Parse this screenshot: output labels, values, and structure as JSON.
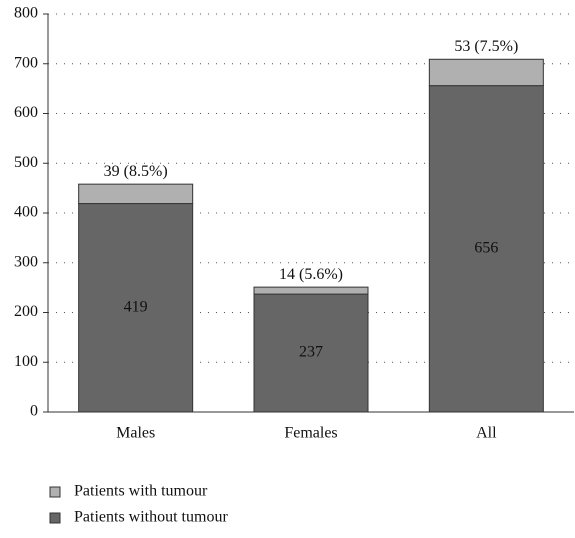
{
  "chart_data": {
    "type": "stacked_bar",
    "categories": [
      "Males",
      "Females",
      "All"
    ],
    "series": [
      {
        "name": "Patients with tumour",
        "color": "#b0b0b0",
        "values": [
          39,
          14,
          53
        ],
        "value_labels": [
          "39 (8.5%)",
          "14 (5.6%)",
          "53 (7.5%)"
        ]
      },
      {
        "name": "Patients without tumour",
        "color": "#666666",
        "values": [
          419,
          237,
          656
        ]
      }
    ],
    "ylim": [
      0,
      800
    ],
    "yticks": [
      0,
      100,
      200,
      300,
      400,
      500,
      600,
      700,
      800
    ],
    "grid": true
  }
}
